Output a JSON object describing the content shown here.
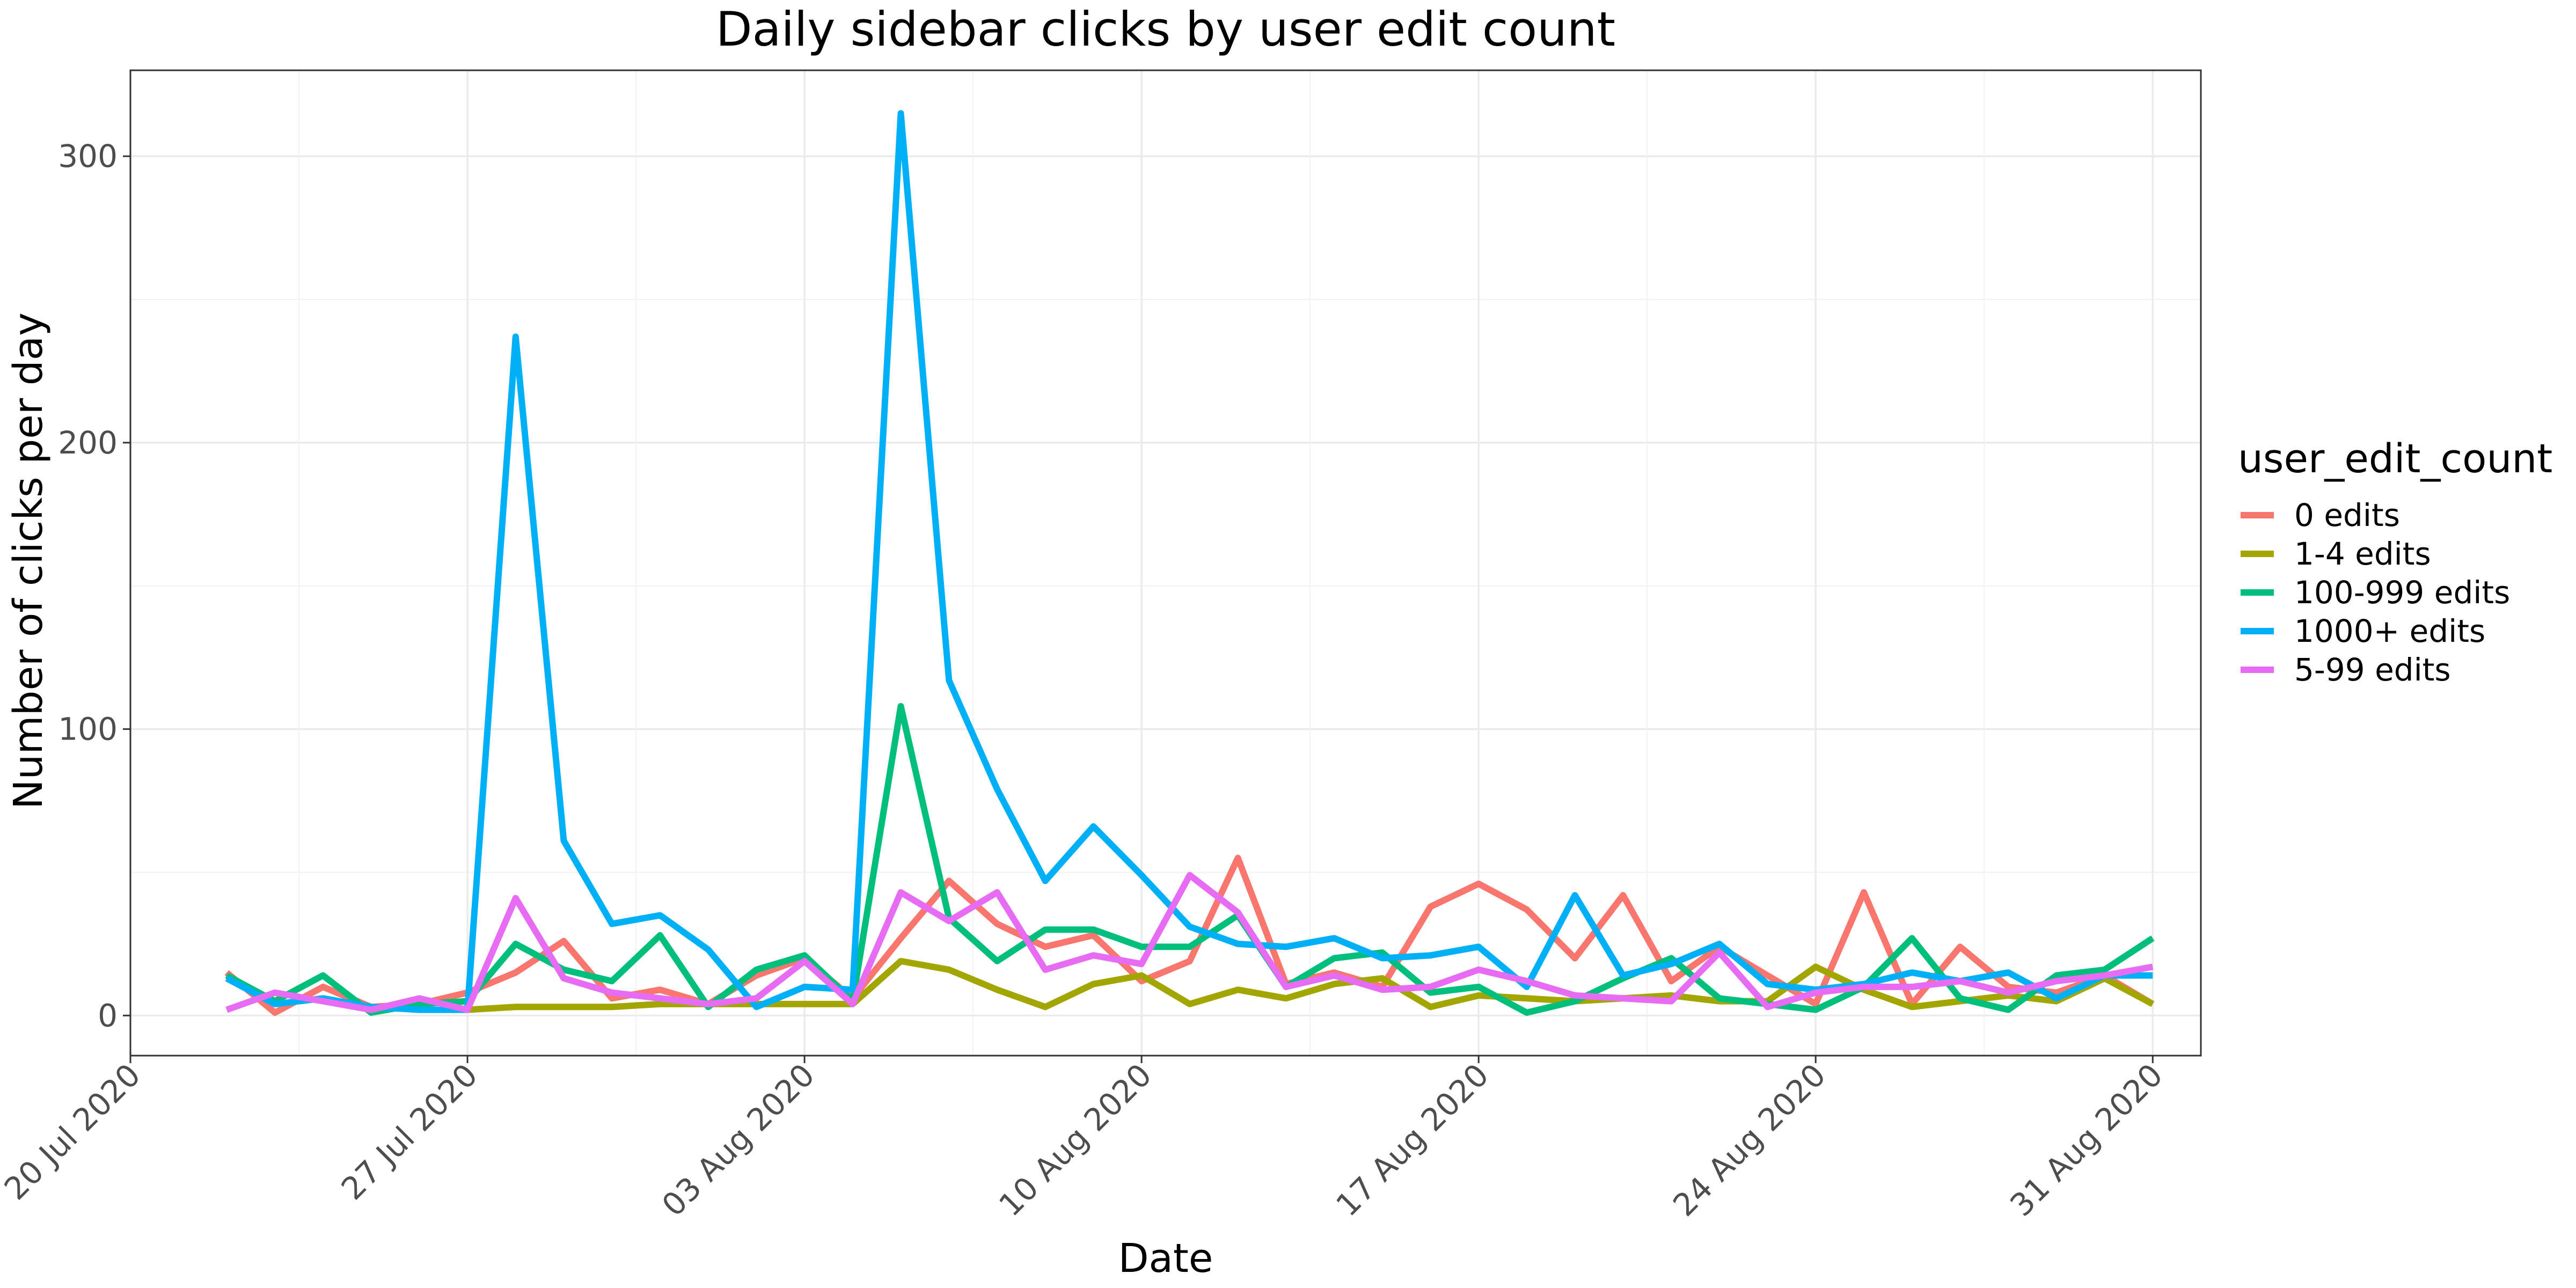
{
  "chart_data": {
    "type": "line",
    "title": "Daily sidebar clicks by user edit count",
    "xlabel": "Date",
    "ylabel": "Number of clicks per day",
    "x_axis_type": "date",
    "xlim": [
      "2020-07-20",
      "2020-09-01"
    ],
    "ylim": [
      -14,
      330
    ],
    "grid": true,
    "x_ticks": [
      {
        "date": "2020-07-20",
        "label": "20 Jul 2020"
      },
      {
        "date": "2020-07-27",
        "label": "27 Jul 2020"
      },
      {
        "date": "2020-08-03",
        "label": "03 Aug 2020"
      },
      {
        "date": "2020-08-10",
        "label": "10 Aug 2020"
      },
      {
        "date": "2020-08-17",
        "label": "17 Aug 2020"
      },
      {
        "date": "2020-08-24",
        "label": "24 Aug 2020"
      },
      {
        "date": "2020-08-31",
        "label": "31 Aug 2020"
      }
    ],
    "y_ticks": [
      0,
      100,
      200,
      300
    ],
    "legend": {
      "title": "user_edit_count",
      "position": "right"
    },
    "x": [
      "2020-07-22",
      "2020-07-23",
      "2020-07-24",
      "2020-07-25",
      "2020-07-26",
      "2020-07-27",
      "2020-07-28",
      "2020-07-29",
      "2020-07-30",
      "2020-07-31",
      "2020-08-01",
      "2020-08-02",
      "2020-08-03",
      "2020-08-04",
      "2020-08-05",
      "2020-08-06",
      "2020-08-07",
      "2020-08-08",
      "2020-08-09",
      "2020-08-10",
      "2020-08-11",
      "2020-08-12",
      "2020-08-13",
      "2020-08-14",
      "2020-08-15",
      "2020-08-16",
      "2020-08-17",
      "2020-08-18",
      "2020-08-19",
      "2020-08-20",
      "2020-08-21",
      "2020-08-22",
      "2020-08-23",
      "2020-08-24",
      "2020-08-25",
      "2020-08-26",
      "2020-08-27",
      "2020-08-28",
      "2020-08-29",
      "2020-08-30",
      "2020-08-31"
    ],
    "series": [
      {
        "name": "0 edits",
        "color": "#F8766D",
        "values": [
          15,
          1,
          10,
          3,
          4,
          8,
          15,
          26,
          6,
          9,
          4,
          14,
          20,
          6,
          27,
          47,
          32,
          24,
          28,
          12,
          19,
          55,
          11,
          15,
          10,
          38,
          46,
          37,
          20,
          42,
          12,
          24,
          14,
          4,
          43,
          4,
          24,
          10,
          8,
          14,
          4
        ]
      },
      {
        "name": "1-4 edits",
        "color": "#A3A500",
        "values": [
          null,
          null,
          null,
          null,
          null,
          2,
          3,
          3,
          3,
          4,
          4,
          4,
          4,
          4,
          19,
          16,
          9,
          3,
          11,
          14,
          4,
          9,
          6,
          11,
          13,
          3,
          7,
          6,
          5,
          6,
          7,
          5,
          5,
          17,
          9,
          3,
          5,
          7,
          5,
          13,
          4
        ]
      },
      {
        "name": "100-999 edits",
        "color": "#00BF7D",
        "values": [
          14,
          5,
          14,
          1,
          4,
          5,
          25,
          16,
          12,
          28,
          3,
          16,
          21,
          5,
          108,
          34,
          19,
          30,
          30,
          24,
          24,
          35,
          10,
          20,
          22,
          8,
          10,
          1,
          5,
          13,
          20,
          6,
          4,
          2,
          10,
          27,
          6,
          2,
          14,
          16,
          27
        ]
      },
      {
        "name": "1000+ edits",
        "color": "#00B0F6",
        "values": [
          13,
          4,
          6,
          3,
          2,
          2,
          237,
          61,
          32,
          35,
          23,
          3,
          10,
          9,
          315,
          117,
          79,
          47,
          66,
          49,
          31,
          25,
          24,
          27,
          20,
          21,
          24,
          10,
          42,
          14,
          18,
          25,
          11,
          9,
          11,
          15,
          12,
          15,
          6,
          14,
          14
        ]
      },
      {
        "name": "5-99 edits",
        "color": "#E76BF3",
        "values": [
          2,
          8,
          5,
          2,
          6,
          2,
          41,
          13,
          8,
          6,
          4,
          6,
          19,
          4,
          43,
          33,
          43,
          16,
          21,
          18,
          49,
          36,
          10,
          14,
          9,
          10,
          16,
          12,
          7,
          6,
          5,
          22,
          3,
          8,
          10,
          10,
          12,
          8,
          12,
          14,
          17
        ]
      }
    ]
  }
}
